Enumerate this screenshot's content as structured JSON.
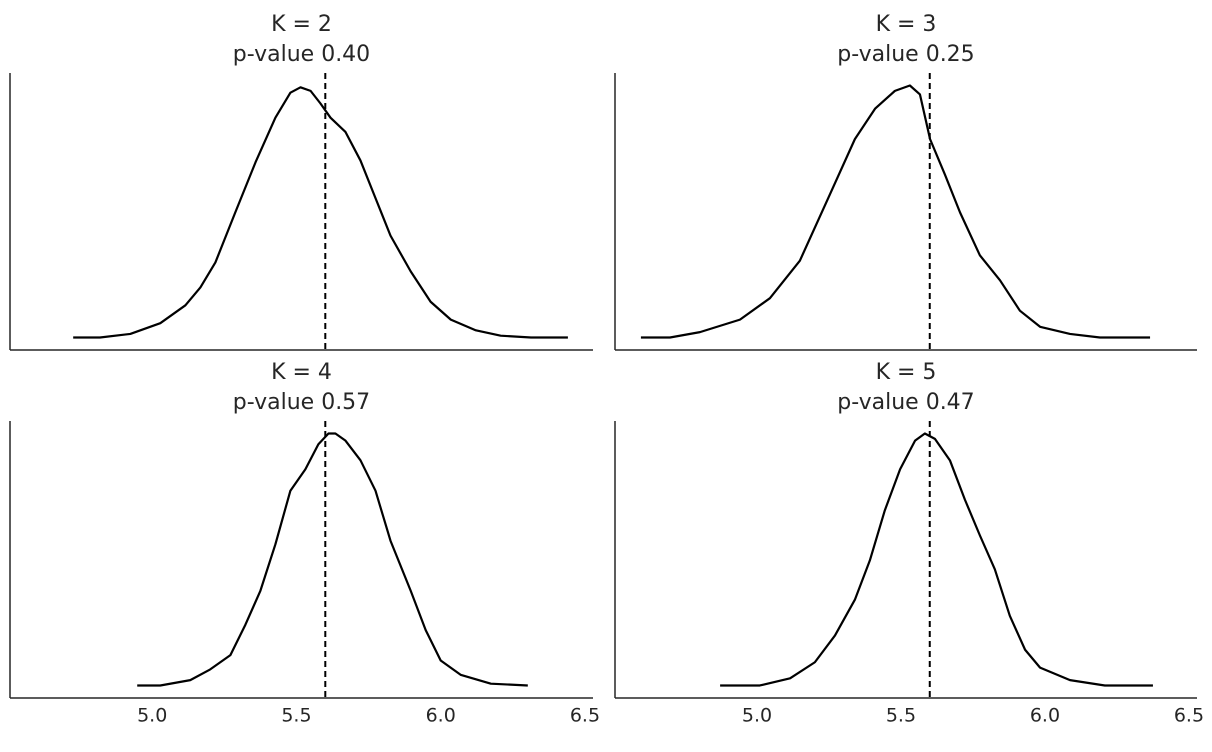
{
  "chart_data": [
    {
      "type": "line",
      "title": "K = 2",
      "subtitle": "p-value 0.40",
      "color": "#000000",
      "xlim": [
        4.507,
        6.528
      ],
      "ylim": [
        0,
        1.55
      ],
      "reference_x": 5.6,
      "x": [
        4.726,
        4.819,
        4.924,
        5.028,
        5.115,
        5.167,
        5.219,
        5.288,
        5.358,
        5.427,
        5.479,
        5.514,
        5.549,
        5.583,
        5.618,
        5.67,
        5.722,
        5.774,
        5.826,
        5.896,
        5.965,
        6.035,
        6.122,
        6.208,
        6.313,
        6.441
      ],
      "values": [
        0.07,
        0.07,
        0.09,
        0.15,
        0.25,
        0.35,
        0.49,
        0.77,
        1.05,
        1.3,
        1.44,
        1.47,
        1.45,
        1.38,
        1.3,
        1.22,
        1.06,
        0.85,
        0.64,
        0.44,
        0.27,
        0.17,
        0.11,
        0.08,
        0.07,
        0.07
      ]
    },
    {
      "type": "line",
      "title": "K = 3",
      "subtitle": "p-value 0.25",
      "color": "#000000",
      "xlim": [
        4.507,
        6.528
      ],
      "ylim": [
        0,
        1.55
      ],
      "reference_x": 5.6,
      "x": [
        4.597,
        4.698,
        4.802,
        4.941,
        5.045,
        5.149,
        5.253,
        5.34,
        5.41,
        5.479,
        5.531,
        5.566,
        5.601,
        5.653,
        5.705,
        5.774,
        5.844,
        5.913,
        5.983,
        6.087,
        6.191,
        6.365
      ],
      "values": [
        0.07,
        0.07,
        0.1,
        0.17,
        0.29,
        0.5,
        0.87,
        1.18,
        1.35,
        1.45,
        1.48,
        1.43,
        1.18,
        0.98,
        0.77,
        0.53,
        0.39,
        0.22,
        0.13,
        0.09,
        0.07,
        0.07
      ]
    },
    {
      "type": "line",
      "title": "K = 4",
      "subtitle": "p-value 0.57",
      "color": "#000000",
      "xlim": [
        4.507,
        6.528
      ],
      "ylim": [
        0,
        1.55
      ],
      "reference_x": 5.6,
      "xticks": [
        {
          "value": 5,
          "label": "5.0"
        },
        5.5,
        {
          "value": 6,
          "label": "6.0"
        },
        6.5
      ],
      "x": [
        4.948,
        5.028,
        5.132,
        5.201,
        5.271,
        5.323,
        5.375,
        5.427,
        5.479,
        5.531,
        5.576,
        5.611,
        5.635,
        5.67,
        5.722,
        5.774,
        5.826,
        5.896,
        5.948,
        6.0,
        6.069,
        6.174,
        6.302
      ],
      "values": [
        0.07,
        0.07,
        0.1,
        0.16,
        0.24,
        0.41,
        0.6,
        0.86,
        1.16,
        1.28,
        1.42,
        1.48,
        1.48,
        1.44,
        1.33,
        1.16,
        0.88,
        0.6,
        0.38,
        0.21,
        0.13,
        0.08,
        0.07
      ]
    },
    {
      "type": "line",
      "title": "K = 5",
      "subtitle": "p-value 0.47",
      "color": "#000000",
      "xlim": [
        4.507,
        6.528
      ],
      "ylim": [
        0,
        1.55
      ],
      "reference_x": 5.6,
      "xticks": [
        {
          "value": 5,
          "label": "5.0"
        },
        5.5,
        {
          "value": 6,
          "label": "6.0"
        },
        6.5
      ],
      "x": [
        4.872,
        5.01,
        5.115,
        5.201,
        5.271,
        5.34,
        5.392,
        5.444,
        5.497,
        5.549,
        5.583,
        5.618,
        5.67,
        5.722,
        5.774,
        5.826,
        5.878,
        5.931,
        5.983,
        6.087,
        6.208,
        6.375
      ],
      "values": [
        0.07,
        0.07,
        0.11,
        0.2,
        0.35,
        0.55,
        0.77,
        1.05,
        1.28,
        1.44,
        1.48,
        1.45,
        1.33,
        1.11,
        0.91,
        0.72,
        0.46,
        0.27,
        0.17,
        0.1,
        0.07,
        0.07
      ]
    }
  ]
}
